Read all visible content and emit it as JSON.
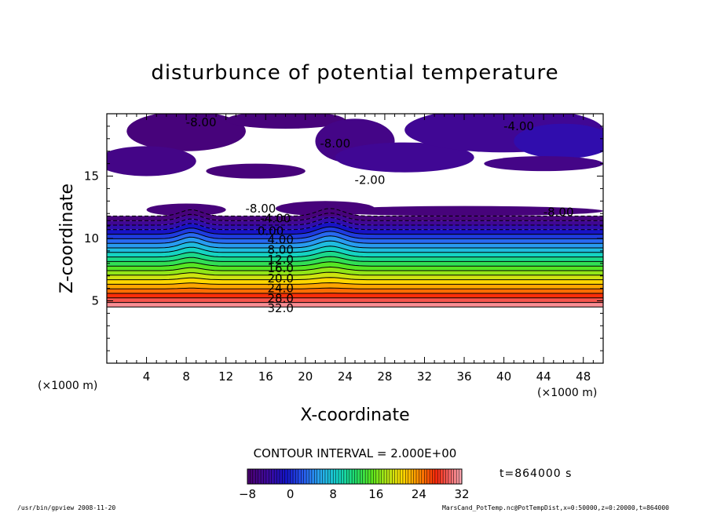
{
  "chart_data": {
    "type": "heatmap",
    "title": "disturbunce of potential temperature",
    "xlabel": "X-coordinate",
    "ylabel": "Z-coordinate",
    "x_unit_left": "(×1000 m)",
    "x_unit_right": "(×1000 m)",
    "xlim": [
      0,
      50
    ],
    "ylim": [
      0,
      20
    ],
    "x_ticks": [
      4,
      8,
      12,
      16,
      20,
      24,
      28,
      32,
      36,
      40,
      44,
      48
    ],
    "y_ticks": [
      5,
      10,
      15
    ],
    "contour_interval_text": "CONTOUR INTERVAL = 2.000E+00",
    "time_label": "t=864000 s",
    "colorbar": {
      "min": -8,
      "max": 32,
      "tick_values": [
        -8,
        0,
        8,
        16,
        24,
        32
      ],
      "tick_labels": [
        "−8",
        "0",
        "8",
        "16",
        "24",
        "32"
      ]
    },
    "contour_labels": [
      {
        "text": "-8.00",
        "x": 9.5,
        "z": 19.3
      },
      {
        "text": "-8.00",
        "x": 23.0,
        "z": 17.6
      },
      {
        "text": "-4.00",
        "x": 41.5,
        "z": 19.0
      },
      {
        "text": "-2.00",
        "x": 26.5,
        "z": 14.7
      },
      {
        "text": "-8.00",
        "x": 15.5,
        "z": 12.4
      },
      {
        "text": "-4.00",
        "x": 17.0,
        "z": 11.6
      },
      {
        "text": "0.00",
        "x": 16.5,
        "z": 10.6
      },
      {
        "text": "4.00",
        "x": 17.5,
        "z": 9.9
      },
      {
        "text": "8.00",
        "x": 17.5,
        "z": 9.1
      },
      {
        "text": "12.0",
        "x": 17.5,
        "z": 8.3
      },
      {
        "text": "16.0",
        "x": 17.5,
        "z": 7.6
      },
      {
        "text": "20.0",
        "x": 17.5,
        "z": 6.8
      },
      {
        "text": "24.0",
        "x": 17.5,
        "z": 6.0
      },
      {
        "text": "28.0",
        "x": 17.5,
        "z": 5.2
      },
      {
        "text": "32.0",
        "x": 17.5,
        "z": 4.4
      },
      {
        "text": "-8.00",
        "x": 45.5,
        "z": 12.1
      }
    ]
  },
  "footer": {
    "left": "/usr/bin/gpview   2008-11-20",
    "right": "MarsCand_PotTemp.nc@PotTempDist,x=0:50000,z=0:20000,t=864000"
  }
}
